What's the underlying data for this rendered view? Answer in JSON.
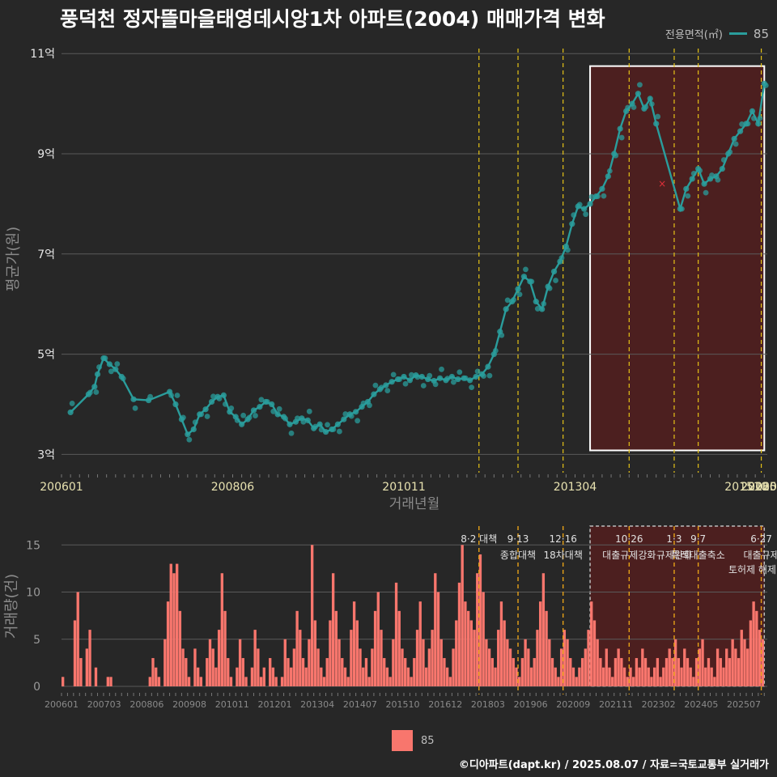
{
  "title": "풍덕천 정자뜰마을태영데시앙1차 아파트(2004) 매매가격 변화",
  "legend_top": {
    "title": "전용면적(㎡)",
    "series": "85"
  },
  "legend_bottom": {
    "series": "85"
  },
  "footer": "©디아파트(dapt.kr) / 2025.08.07 / 자료=국토교통부 실거래가",
  "colors": {
    "background": "#272727",
    "line": "#2a9d9c",
    "bar": "#f8766d",
    "policy_line": "#e6c317",
    "highlight_fill": "#5a1e1e",
    "highlight_border": "#ffffff",
    "grid": "#5a5a5a"
  },
  "chart_data": [
    {
      "type": "line",
      "ylabel": "평균가(원)",
      "xlabel": "거래년월",
      "ylim": [
        270000000,
        1110000000
      ],
      "yticks": [
        {
          "value": 300000000,
          "label": "3억"
        },
        {
          "value": 500000000,
          "label": "5억"
        },
        {
          "value": 700000000,
          "label": "7억"
        },
        {
          "value": 900000000,
          "label": "9억"
        },
        {
          "value": 1100000000,
          "label": "11억"
        }
      ],
      "xlim": [
        "2006-01",
        "2025-07"
      ],
      "xticks": [
        "200601",
        "200806",
        "201011",
        "201304",
        "201510",
        "201803",
        "202009",
        "202302",
        "2025"
      ],
      "grid": true,
      "legend_position": "top-right",
      "series": [
        {
          "name": "85"
        }
      ],
      "points": [
        [
          "2006-04",
          384
        ],
        [
          "2006-10",
          420
        ],
        [
          "2006-12",
          435
        ],
        [
          "2007-01",
          460
        ],
        [
          "2007-03",
          492
        ],
        [
          "2007-05",
          480
        ],
        [
          "2007-07",
          470
        ],
        [
          "2007-09",
          455
        ],
        [
          "2008-01",
          410
        ],
        [
          "2008-06",
          408
        ],
        [
          "2009-01",
          425
        ],
        [
          "2009-03",
          400
        ],
        [
          "2009-05",
          370
        ],
        [
          "2009-07",
          340
        ],
        [
          "2009-09",
          350
        ],
        [
          "2009-11",
          380
        ],
        [
          "2010-01",
          390
        ],
        [
          "2010-03",
          405
        ],
        [
          "2010-05",
          415
        ],
        [
          "2010-07",
          418
        ],
        [
          "2010-09",
          385
        ],
        [
          "2010-11",
          375
        ],
        [
          "2011-01",
          360
        ],
        [
          "2011-03",
          370
        ],
        [
          "2011-05",
          388
        ],
        [
          "2011-07",
          395
        ],
        [
          "2011-09",
          405
        ],
        [
          "2011-11",
          400
        ],
        [
          "2012-01",
          380
        ],
        [
          "2012-03",
          375
        ],
        [
          "2012-05",
          360
        ],
        [
          "2012-07",
          365
        ],
        [
          "2012-09",
          372
        ],
        [
          "2012-11",
          368
        ],
        [
          "2013-01",
          352
        ],
        [
          "2013-03",
          360
        ],
        [
          "2013-05",
          345
        ],
        [
          "2013-07",
          350
        ],
        [
          "2013-09",
          360
        ],
        [
          "2013-11",
          370
        ],
        [
          "2014-01",
          380
        ],
        [
          "2014-03",
          385
        ],
        [
          "2014-05",
          395
        ],
        [
          "2014-07",
          405
        ],
        [
          "2014-09",
          420
        ],
        [
          "2014-11",
          430
        ],
        [
          "2015-01",
          438
        ],
        [
          "2015-03",
          445
        ],
        [
          "2015-05",
          450
        ],
        [
          "2015-07",
          455
        ],
        [
          "2015-09",
          448
        ],
        [
          "2015-11",
          458
        ],
        [
          "2016-01",
          455
        ],
        [
          "2016-03",
          450
        ],
        [
          "2016-05",
          447
        ],
        [
          "2016-07",
          452
        ],
        [
          "2016-09",
          448
        ],
        [
          "2016-11",
          455
        ],
        [
          "2017-01",
          450
        ],
        [
          "2017-03",
          452
        ],
        [
          "2017-05",
          448
        ],
        [
          "2017-07",
          455
        ],
        [
          "2017-09",
          460
        ],
        [
          "2017-11",
          475
        ],
        [
          "2018-01",
          500
        ],
        [
          "2018-03",
          545
        ],
        [
          "2018-05",
          590
        ],
        [
          "2018-07",
          605
        ],
        [
          "2018-09",
          630
        ],
        [
          "2018-11",
          655
        ],
        [
          "2019-01",
          645
        ],
        [
          "2019-03",
          605
        ],
        [
          "2019-05",
          590
        ],
        [
          "2019-07",
          635
        ],
        [
          "2019-09",
          665
        ],
        [
          "2019-11",
          685
        ],
        [
          "2020-01",
          715
        ],
        [
          "2020-03",
          760
        ],
        [
          "2020-05",
          795
        ],
        [
          "2020-07",
          790
        ],
        [
          "2020-09",
          800
        ],
        [
          "2020-11",
          815
        ],
        [
          "2021-01",
          830
        ],
        [
          "2021-03",
          855
        ],
        [
          "2021-05",
          900
        ],
        [
          "2021-07",
          950
        ],
        [
          "2021-09",
          985
        ],
        [
          "2021-11",
          1000
        ],
        [
          "2022-01",
          1020
        ],
        [
          "2022-03",
          990
        ],
        [
          "2022-05",
          1010
        ],
        [
          "2022-07",
          960
        ],
        [
          "2023-03",
          790
        ],
        [
          "2023-05",
          830
        ],
        [
          "2023-07",
          850
        ],
        [
          "2023-09",
          870
        ],
        [
          "2023-11",
          840
        ],
        [
          "2024-01",
          850
        ],
        [
          "2024-03",
          855
        ],
        [
          "2024-05",
          870
        ],
        [
          "2024-07",
          900
        ],
        [
          "2024-09",
          930
        ],
        [
          "2024-11",
          945
        ],
        [
          "2025-01",
          960
        ],
        [
          "2025-03",
          985
        ],
        [
          "2025-05",
          960
        ],
        [
          "2025-07",
          1040
        ]
      ],
      "points_unit": "백만원",
      "outlier": [
        "2022-09",
        840
      ]
    },
    {
      "type": "bar",
      "ylabel": "거래량(건)",
      "ylim": [
        0,
        17
      ],
      "yticks": [
        0,
        5,
        10,
        15
      ],
      "xticks": [
        "200601",
        "200703",
        "200806",
        "200908",
        "201011",
        "201201",
        "201304",
        "201407",
        "201510",
        "201612",
        "201803",
        "201906",
        "202009",
        "202111",
        "202302",
        "202405",
        "202507"
      ],
      "series": [
        {
          "name": "85"
        }
      ],
      "values": [
        0,
        0,
        0,
        0,
        0,
        0,
        0,
        0,
        0,
        0,
        0,
        0,
        0,
        0,
        0,
        0,
        0,
        0,
        0,
        0,
        0,
        0,
        0,
        0,
        0,
        0,
        0,
        0,
        0,
        0,
        0,
        0,
        0,
        0,
        0,
        0,
        0,
        0,
        0,
        0,
        0,
        0,
        0,
        0,
        0,
        0,
        0,
        0,
        0,
        0,
        0,
        0,
        0,
        0,
        0,
        0,
        0,
        0,
        0,
        0,
        0,
        0,
        0,
        0,
        0,
        0,
        0,
        0,
        0,
        0,
        0,
        0,
        0,
        0,
        0,
        0,
        0,
        0,
        0,
        0,
        0,
        0,
        0,
        0,
        0,
        0,
        0,
        0,
        0,
        0,
        0,
        0,
        0,
        0,
        0,
        0,
        0,
        0,
        0,
        0,
        0,
        0,
        0,
        0,
        0,
        0,
        0,
        0,
        0,
        0,
        0,
        0,
        0,
        0,
        0,
        0,
        0,
        0,
        0,
        0,
        0,
        0,
        0,
        0,
        0,
        0,
        0,
        0,
        0,
        0,
        0,
        0,
        0,
        0,
        0,
        0,
        0,
        0,
        0,
        0,
        0,
        0,
        0,
        0,
        0,
        0,
        0,
        0,
        0,
        0,
        0,
        0,
        0,
        0,
        0,
        0,
        0,
        0,
        0,
        0,
        0,
        0,
        0,
        0,
        0,
        0,
        0,
        0,
        0,
        0,
        0,
        0,
        0,
        0,
        0,
        0,
        0,
        0,
        0,
        0,
        0,
        0,
        0,
        0,
        0,
        0,
        0,
        0,
        0,
        0,
        0,
        0,
        0,
        0,
        0,
        0,
        0,
        0,
        0,
        0,
        0,
        0,
        0,
        0,
        0,
        0,
        0,
        0,
        0,
        0,
        0,
        0,
        0,
        0,
        0,
        0,
        0,
        0,
        0,
        0,
        0,
        0,
        0,
        0,
        0,
        0,
        0,
        0,
        0,
        0,
        0,
        0,
        0,
        0
      ],
      "annotations": [
        {
          "month": "2017-08",
          "label": "8·2 대책"
        },
        {
          "month": "2018-09",
          "label": "9·13\n종합대책"
        },
        {
          "month": "2019-12",
          "label": "12·16\n18차대책"
        },
        {
          "month": "2021-10",
          "label": "10·26\n대출규제강화"
        },
        {
          "month": "2023-01",
          "label": "1·3\n규제완화"
        },
        {
          "month": "2023-09",
          "label": "9·7\n특례대출축소"
        },
        {
          "month": "2025-06",
          "label": "6·27\n대출규제"
        }
      ],
      "extra_labels": [
        "토허제 해제"
      ]
    }
  ]
}
